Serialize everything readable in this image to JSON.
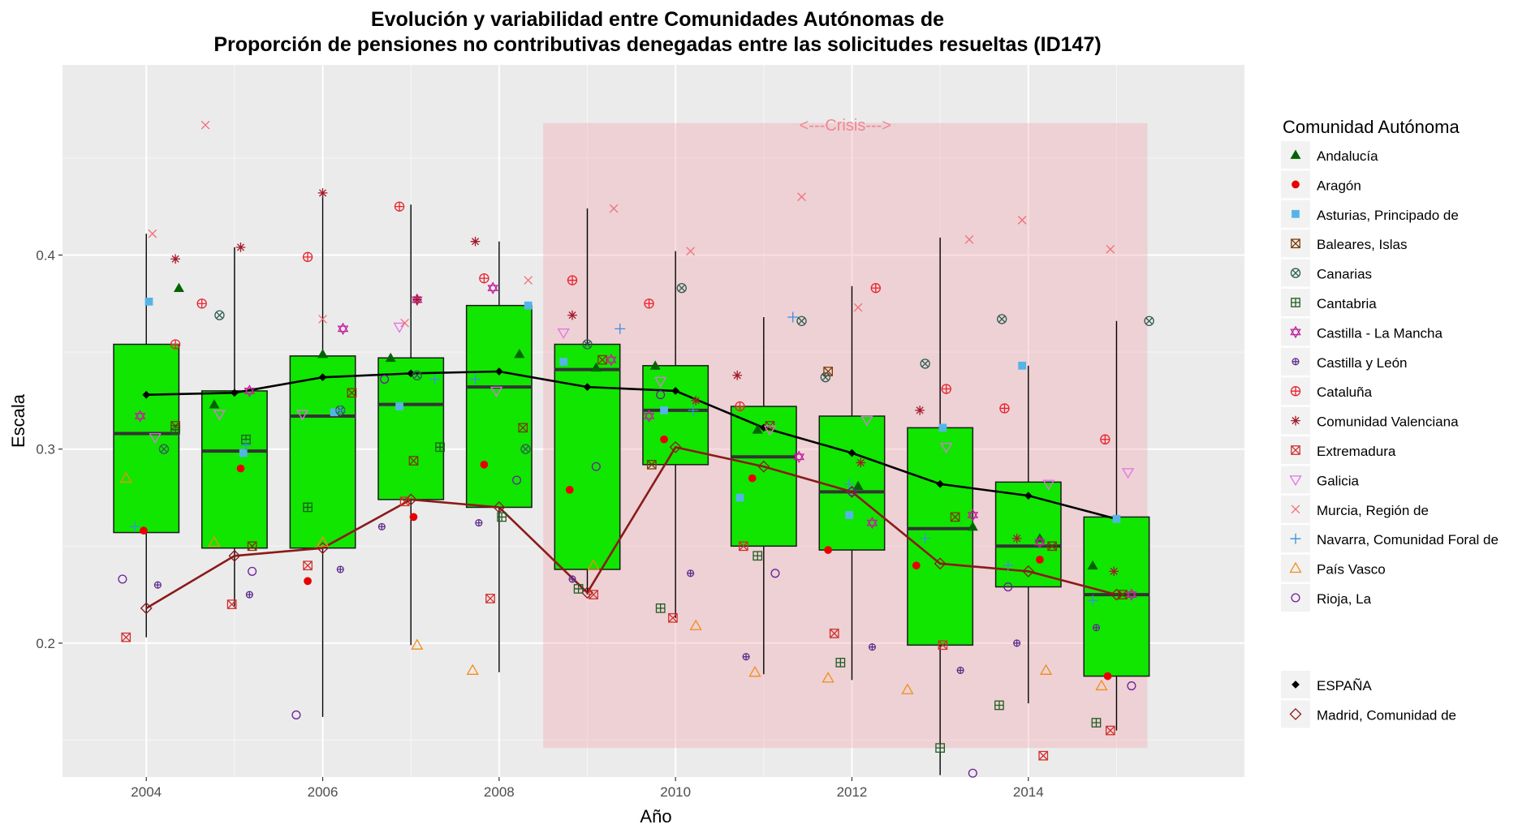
{
  "chart_data": {
    "type": "box",
    "title_line1": "Evolución y variabilidad entre Comunidades Autónomas de",
    "title_line2": "Proporción de pensiones no contributivas denegadas entre las solicitudes resueltas (ID147)",
    "xlabel": "Año",
    "ylabel": "Escala",
    "xlim": [
      2003.05,
      2016.45
    ],
    "ylim": [
      0.131,
      0.498
    ],
    "x_ticks": [
      "2004",
      "2006",
      "2008",
      "2010",
      "2012",
      "2014"
    ],
    "y_ticks": [
      "0.2",
      "0.3",
      "0.4"
    ],
    "crisis": {
      "label": "<---Crisis--->",
      "from": 2008.5,
      "to": 2015.35,
      "ymin": 0.146,
      "ymax": 0.468
    },
    "boxes": [
      {
        "year": 2004,
        "q1": 0.257,
        "median": 0.308,
        "q3": 0.354,
        "wmin": 0.203,
        "wmax": 0.411
      },
      {
        "year": 2005,
        "q1": 0.249,
        "median": 0.299,
        "q3": 0.33,
        "wmin": 0.219,
        "wmax": 0.404
      },
      {
        "year": 2006,
        "q1": 0.249,
        "median": 0.317,
        "q3": 0.348,
        "wmin": 0.162,
        "wmax": 0.432
      },
      {
        "year": 2007,
        "q1": 0.274,
        "median": 0.323,
        "q3": 0.347,
        "wmin": 0.199,
        "wmax": 0.426
      },
      {
        "year": 2008,
        "q1": 0.27,
        "median": 0.332,
        "q3": 0.374,
        "wmin": 0.185,
        "wmax": 0.407
      },
      {
        "year": 2009,
        "q1": 0.238,
        "median": 0.341,
        "q3": 0.354,
        "wmin": 0.225,
        "wmax": 0.424
      },
      {
        "year": 2010,
        "q1": 0.292,
        "median": 0.32,
        "q3": 0.343,
        "wmin": 0.213,
        "wmax": 0.402
      },
      {
        "year": 2011,
        "q1": 0.25,
        "median": 0.296,
        "q3": 0.322,
        "wmin": 0.184,
        "wmax": 0.368
      },
      {
        "year": 2012,
        "q1": 0.248,
        "median": 0.278,
        "q3": 0.317,
        "wmin": 0.181,
        "wmax": 0.384
      },
      {
        "year": 2013,
        "q1": 0.199,
        "median": 0.259,
        "q3": 0.311,
        "wmin": 0.132,
        "wmax": 0.409
      },
      {
        "year": 2014,
        "q1": 0.229,
        "median": 0.25,
        "q3": 0.283,
        "wmin": 0.169,
        "wmax": 0.343
      },
      {
        "year": 2015,
        "q1": 0.183,
        "median": 0.225,
        "q3": 0.265,
        "wmin": 0.155,
        "wmax": 0.366
      }
    ],
    "legend_title": "Comunidad Autónoma",
    "series": [
      {
        "name": "Andalucía",
        "shape": "triangle-filled",
        "color": "#006400",
        "points": [
          [
            2004.37,
            0.383
          ],
          [
            2004.77,
            0.323
          ],
          [
            2006.0,
            0.349
          ],
          [
            2006.77,
            0.347
          ],
          [
            2008.23,
            0.349
          ],
          [
            2009.1,
            0.342
          ],
          [
            2009.77,
            0.343
          ],
          [
            2010.93,
            0.31
          ],
          [
            2012.07,
            0.281
          ],
          [
            2013.37,
            0.26
          ],
          [
            2014.13,
            0.254
          ],
          [
            2014.73,
            0.24
          ]
        ]
      },
      {
        "name": "Aragón",
        "shape": "circle-filled",
        "color": "#e80000",
        "points": [
          [
            2003.97,
            0.258
          ],
          [
            2005.07,
            0.29
          ],
          [
            2005.83,
            0.232
          ],
          [
            2007.03,
            0.265
          ],
          [
            2007.83,
            0.292
          ],
          [
            2008.8,
            0.279
          ],
          [
            2009.87,
            0.305
          ],
          [
            2010.87,
            0.285
          ],
          [
            2011.73,
            0.248
          ],
          [
            2012.73,
            0.24
          ],
          [
            2014.13,
            0.243
          ],
          [
            2014.9,
            0.183
          ]
        ]
      },
      {
        "name": "Asturias, Principado de",
        "shape": "square-filled",
        "color": "#55b4e6",
        "points": [
          [
            2004.03,
            0.376
          ],
          [
            2005.1,
            0.298
          ],
          [
            2006.13,
            0.319
          ],
          [
            2006.87,
            0.322
          ],
          [
            2008.33,
            0.374
          ],
          [
            2008.73,
            0.345
          ],
          [
            2009.87,
            0.32
          ],
          [
            2010.73,
            0.275
          ],
          [
            2011.97,
            0.266
          ],
          [
            2013.03,
            0.311
          ],
          [
            2013.93,
            0.343
          ],
          [
            2015.0,
            0.264
          ]
        ]
      },
      {
        "name": "Baleares, Islas",
        "shape": "square-x",
        "color": "#7b3a00",
        "points": [
          [
            2004.33,
            0.312
          ],
          [
            2005.2,
            0.25
          ],
          [
            2006.33,
            0.329
          ],
          [
            2007.03,
            0.294
          ],
          [
            2008.27,
            0.311
          ],
          [
            2009.17,
            0.346
          ],
          [
            2009.73,
            0.292
          ],
          [
            2011.07,
            0.312
          ],
          [
            2011.73,
            0.34
          ],
          [
            2013.17,
            0.265
          ],
          [
            2014.27,
            0.25
          ],
          [
            2015.07,
            0.225
          ]
        ]
      },
      {
        "name": "Canarias",
        "shape": "circle-x",
        "color": "#2e5c52",
        "points": [
          [
            2004.2,
            0.3
          ],
          [
            2004.83,
            0.369
          ],
          [
            2006.2,
            0.32
          ],
          [
            2007.07,
            0.338
          ],
          [
            2008.3,
            0.3
          ],
          [
            2009.0,
            0.354
          ],
          [
            2010.07,
            0.383
          ],
          [
            2011.43,
            0.366
          ],
          [
            2011.7,
            0.337
          ],
          [
            2012.83,
            0.344
          ],
          [
            2013.7,
            0.367
          ],
          [
            2015.37,
            0.366
          ]
        ]
      },
      {
        "name": "Cantabria",
        "shape": "square-plus",
        "color": "#1f5c1f",
        "points": [
          [
            2004.33,
            0.31
          ],
          [
            2005.13,
            0.305
          ],
          [
            2005.83,
            0.27
          ],
          [
            2007.33,
            0.301
          ],
          [
            2008.03,
            0.265
          ],
          [
            2008.9,
            0.228
          ],
          [
            2009.83,
            0.218
          ],
          [
            2010.93,
            0.245
          ],
          [
            2011.87,
            0.19
          ],
          [
            2013.0,
            0.146
          ],
          [
            2013.67,
            0.168
          ],
          [
            2014.77,
            0.159
          ]
        ]
      },
      {
        "name": "Castilla - La Mancha",
        "shape": "star-of-david",
        "color": "#c51f9e",
        "points": [
          [
            2003.93,
            0.317
          ],
          [
            2005.17,
            0.33
          ],
          [
            2006.23,
            0.362
          ],
          [
            2007.07,
            0.377
          ],
          [
            2007.93,
            0.383
          ],
          [
            2009.27,
            0.346
          ],
          [
            2009.7,
            0.317
          ],
          [
            2011.4,
            0.296
          ],
          [
            2012.23,
            0.262
          ],
          [
            2013.37,
            0.266
          ],
          [
            2014.13,
            0.252
          ],
          [
            2015.17,
            0.225
          ]
        ]
      },
      {
        "name": "Castilla y León",
        "shape": "circle-plus",
        "color": "#5f2b8c",
        "points": [
          [
            2004.13,
            0.23
          ],
          [
            2005.17,
            0.225
          ],
          [
            2006.2,
            0.238
          ],
          [
            2006.67,
            0.26
          ],
          [
            2007.77,
            0.262
          ],
          [
            2008.83,
            0.233
          ],
          [
            2010.17,
            0.236
          ],
          [
            2010.8,
            0.193
          ],
          [
            2012.23,
            0.198
          ],
          [
            2013.23,
            0.186
          ],
          [
            2013.87,
            0.2
          ],
          [
            2014.77,
            0.208
          ]
        ]
      },
      {
        "name": "Cataluña",
        "shape": "circle-plus-red",
        "color": "#e8232e",
        "points": [
          [
            2004.33,
            0.354
          ],
          [
            2004.63,
            0.375
          ],
          [
            2005.83,
            0.399
          ],
          [
            2006.87,
            0.425
          ],
          [
            2007.83,
            0.388
          ],
          [
            2008.83,
            0.387
          ],
          [
            2009.7,
            0.375
          ],
          [
            2010.73,
            0.322
          ],
          [
            2012.27,
            0.383
          ],
          [
            2013.07,
            0.331
          ],
          [
            2013.73,
            0.321
          ],
          [
            2014.87,
            0.305
          ]
        ]
      },
      {
        "name": "Comunidad Valenciana",
        "shape": "asterisk",
        "color": "#a3192a",
        "points": [
          [
            2004.33,
            0.398
          ],
          [
            2005.07,
            0.404
          ],
          [
            2006.0,
            0.432
          ],
          [
            2007.07,
            0.377
          ],
          [
            2007.73,
            0.407
          ],
          [
            2008.83,
            0.369
          ],
          [
            2010.23,
            0.325
          ],
          [
            2010.7,
            0.338
          ],
          [
            2012.1,
            0.293
          ],
          [
            2012.77,
            0.32
          ],
          [
            2013.87,
            0.254
          ],
          [
            2014.97,
            0.237
          ]
        ]
      },
      {
        "name": "Extremadura",
        "shape": "square-x-red",
        "color": "#d0302e",
        "points": [
          [
            2003.77,
            0.203
          ],
          [
            2004.97,
            0.22
          ],
          [
            2005.83,
            0.24
          ],
          [
            2006.93,
            0.273
          ],
          [
            2007.9,
            0.223
          ],
          [
            2009.07,
            0.225
          ],
          [
            2009.97,
            0.213
          ],
          [
            2010.77,
            0.25
          ],
          [
            2011.8,
            0.205
          ],
          [
            2013.03,
            0.199
          ],
          [
            2014.17,
            0.142
          ],
          [
            2014.93,
            0.155
          ]
        ]
      },
      {
        "name": "Galicia",
        "shape": "triangle-down",
        "color": "#e66fe6",
        "points": [
          [
            2004.1,
            0.306
          ],
          [
            2004.83,
            0.318
          ],
          [
            2005.77,
            0.318
          ],
          [
            2006.87,
            0.363
          ],
          [
            2007.97,
            0.33
          ],
          [
            2008.73,
            0.36
          ],
          [
            2009.83,
            0.335
          ],
          [
            2011.07,
            0.31
          ],
          [
            2012.17,
            0.315
          ],
          [
            2013.07,
            0.301
          ],
          [
            2014.23,
            0.282
          ],
          [
            2015.13,
            0.288
          ]
        ]
      },
      {
        "name": "Murcia, Región de",
        "shape": "x",
        "color": "#f26e78",
        "points": [
          [
            2004.07,
            0.411
          ],
          [
            2004.67,
            0.467
          ],
          [
            2006.0,
            0.367
          ],
          [
            2006.93,
            0.365
          ],
          [
            2008.33,
            0.387
          ],
          [
            2009.3,
            0.424
          ],
          [
            2010.17,
            0.402
          ],
          [
            2011.43,
            0.43
          ],
          [
            2012.07,
            0.373
          ],
          [
            2013.33,
            0.408
          ],
          [
            2013.93,
            0.418
          ],
          [
            2014.93,
            0.403
          ]
        ]
      },
      {
        "name": "Navarra, Comunidad Foral de",
        "shape": "plus",
        "color": "#3b8ee0",
        "points": [
          [
            2003.87,
            0.26
          ],
          [
            2005.13,
            0.302
          ],
          [
            2006.2,
            0.32
          ],
          [
            2007.27,
            0.336
          ],
          [
            2007.73,
            0.336
          ],
          [
            2009.37,
            0.362
          ],
          [
            2010.2,
            0.32
          ],
          [
            2011.33,
            0.368
          ],
          [
            2011.97,
            0.282
          ],
          [
            2012.83,
            0.254
          ],
          [
            2013.77,
            0.24
          ],
          [
            2014.73,
            0.222
          ]
        ]
      },
      {
        "name": "País Vasco",
        "shape": "triangle-open",
        "color": "#f28c1a",
        "points": [
          [
            2003.77,
            0.285
          ],
          [
            2004.77,
            0.252
          ],
          [
            2006.0,
            0.252
          ],
          [
            2007.07,
            0.199
          ],
          [
            2007.7,
            0.186
          ],
          [
            2009.07,
            0.24
          ],
          [
            2010.23,
            0.209
          ],
          [
            2010.9,
            0.185
          ],
          [
            2011.73,
            0.182
          ],
          [
            2012.63,
            0.176
          ],
          [
            2014.2,
            0.186
          ],
          [
            2014.83,
            0.178
          ]
        ]
      },
      {
        "name": "Rioja, La",
        "shape": "circle-open",
        "color": "#6a1f99",
        "points": [
          [
            2003.73,
            0.233
          ],
          [
            2005.2,
            0.237
          ],
          [
            2005.7,
            0.163
          ],
          [
            2006.7,
            0.336
          ],
          [
            2008.2,
            0.284
          ],
          [
            2009.1,
            0.291
          ],
          [
            2009.83,
            0.328
          ],
          [
            2011.13,
            0.236
          ],
          [
            2012.0,
            0.278
          ],
          [
            2013.37,
            0.133
          ],
          [
            2013.77,
            0.229
          ],
          [
            2015.17,
            0.178
          ]
        ]
      }
    ],
    "extra_series": [
      {
        "name": "ESPAÑA",
        "shape": "diamond-filled",
        "color": "#000000",
        "points": [
          [
            2004,
            0.328
          ],
          [
            2005,
            0.329
          ],
          [
            2006,
            0.337
          ],
          [
            2007,
            0.339
          ],
          [
            2008,
            0.34
          ],
          [
            2009,
            0.332
          ],
          [
            2010,
            0.33
          ],
          [
            2011,
            0.311
          ],
          [
            2012,
            0.298
          ],
          [
            2013,
            0.282
          ],
          [
            2014,
            0.276
          ],
          [
            2015,
            0.264
          ]
        ]
      },
      {
        "name": "Madrid, Comunidad de",
        "shape": "diamond-open",
        "color": "#8b1a1a",
        "points": [
          [
            2004,
            0.218
          ],
          [
            2005,
            0.245
          ],
          [
            2006,
            0.249
          ],
          [
            2007,
            0.274
          ],
          [
            2008,
            0.27
          ],
          [
            2009,
            0.226
          ],
          [
            2010,
            0.301
          ],
          [
            2011,
            0.291
          ],
          [
            2012,
            0.278
          ],
          [
            2013,
            0.241
          ],
          [
            2014,
            0.237
          ],
          [
            2015,
            0.225
          ]
        ]
      }
    ]
  }
}
